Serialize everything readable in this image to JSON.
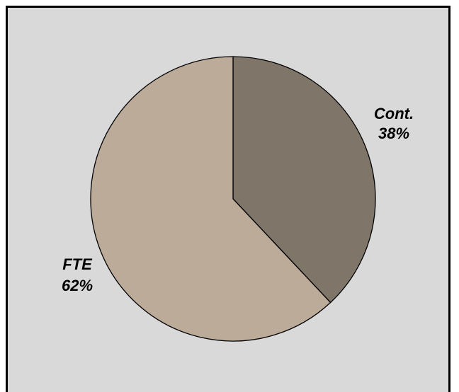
{
  "chart_data": {
    "type": "pie",
    "title": "",
    "slices": [
      {
        "label": "Cont.",
        "percent_label": "38%",
        "value": 38,
        "color": "#7f7669"
      },
      {
        "label": "FTE",
        "percent_label": "62%",
        "value": 62,
        "color": "#bbab98"
      }
    ],
    "background_color": "#d9d9d9",
    "legend": "none"
  }
}
